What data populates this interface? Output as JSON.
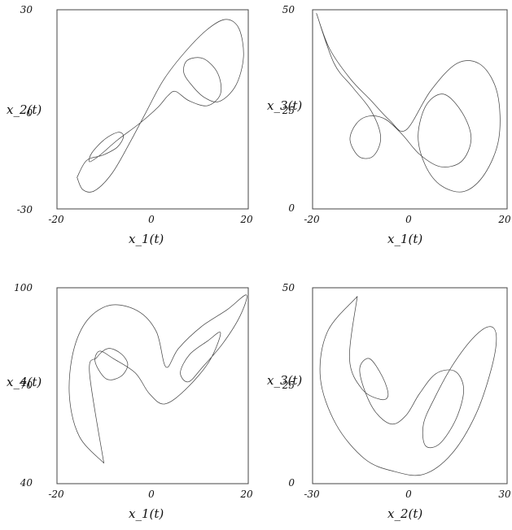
{
  "chart_data": [
    {
      "type": "line",
      "xlabel": "x_1(t)",
      "ylabel": "x_2(t)",
      "xlim": [
        -20,
        20
      ],
      "ylim": [
        -30,
        30
      ],
      "xticks": [
        "-20",
        "0",
        "20"
      ],
      "yticks": [
        "30",
        "0",
        "-30"
      ],
      "x": [
        -15.8,
        -14.6,
        -12.1,
        -8.4,
        -4.6,
        -1.5,
        2.3,
        7.1,
        11.9,
        15.5,
        18.1,
        19.0,
        17.4,
        14.0,
        10.8,
        8.1,
        6.5,
        7.3,
        10.6,
        13.6,
        14.2,
        11.5,
        7.6,
        4.8,
        3.2,
        1.1,
        -2.6,
        -7.4,
        -11.1,
        -13.2,
        -12.7,
        -10.0,
        -7.2,
        -6.1,
        -7.4,
        -10.4,
        -13.8,
        -15.8
      ],
      "y": [
        -20.5,
        -24.2,
        -24.5,
        -19.1,
        -9.6,
        -1.2,
        8.9,
        17.8,
        24.6,
        27.1,
        24.2,
        15.8,
        7.2,
        2.4,
        3.6,
        7.4,
        11.2,
        14.8,
        15.3,
        10.9,
        4.7,
        1.1,
        2.6,
        5.4,
        4.1,
        0.6,
        -4.1,
        -9.3,
        -13.9,
        -15.8,
        -13.1,
        -9.0,
        -6.9,
        -8.2,
        -11.4,
        -13.8,
        -15.4,
        -20.5
      ]
    },
    {
      "type": "line",
      "xlabel": "x_1(t)",
      "ylabel": "x_3(t)",
      "xlim": [
        -20,
        20
      ],
      "ylim": [
        0,
        50
      ],
      "xticks": [
        "-20",
        "0",
        "20"
      ],
      "yticks": [
        "50",
        "25",
        "0"
      ],
      "x": [
        -19.2,
        -16.5,
        -12.2,
        -8.2,
        -4.2,
        -0.8,
        4.3,
        9.8,
        14.7,
        18.0,
        18.3,
        15.4,
        11.2,
        6.5,
        3.2,
        1.7,
        3.4,
        7.0,
        10.8,
        12.6,
        10.6,
        6.3,
        2.0,
        -1.5,
        -5.0,
        -8.4,
        -11.0,
        -12.3,
        -10.4,
        -7.5,
        -6.0,
        -7.9,
        -11.8,
        -15.6,
        -19.2
      ],
      "y": [
        49.1,
        40.2,
        32.6,
        27.5,
        22.3,
        19.8,
        29.7,
        36.6,
        36.1,
        29.0,
        17.7,
        8.8,
        4.4,
        5.8,
        10.9,
        18.4,
        26.1,
        28.8,
        24.1,
        17.6,
        11.9,
        10.6,
        13.7,
        18.6,
        22.5,
        23.3,
        21.4,
        17.3,
        13.1,
        13.3,
        18.0,
        24.5,
        30.6,
        36.6,
        49.1
      ]
    },
    {
      "type": "line",
      "xlabel": "x_1(t)",
      "ylabel": "x_4(t)",
      "xlim": [
        -20,
        20
      ],
      "ylim": [
        40,
        100
      ],
      "xticks": [
        "-20",
        "0",
        "20"
      ],
      "yticks": [
        "100",
        "70",
        "40"
      ],
      "x": [
        -10.2,
        -15.3,
        -17.4,
        -16.6,
        -13.6,
        -8.7,
        -3.0,
        0.8,
        2.8,
        5.4,
        10.2,
        15.6,
        19.6,
        18.3,
        14.7,
        10.5,
        7.5,
        5.8,
        7.7,
        11.5,
        14.2,
        11.9,
        7.0,
        2.5,
        -0.7,
        -3.6,
        -8.2,
        -11.1,
        -12.0,
        -9.7,
        -6.7,
        -5.2,
        -6.6,
        -9.3,
        -11.7,
        -13.2,
        -10.2
      ],
      "y": [
        46.3,
        54.4,
        66.8,
        80.4,
        90.2,
        94.7,
        92.8,
        86.5,
        75.7,
        81.4,
        88.1,
        93.3,
        97.8,
        91.4,
        83.0,
        75.8,
        71.2,
        74.0,
        79.5,
        83.7,
        86.2,
        77.6,
        69.0,
        64.4,
        67.6,
        73.9,
        78.3,
        80.6,
        77.2,
        72.1,
        72.8,
        76.4,
        79.8,
        81.4,
        78.6,
        74.0,
        46.3
      ]
    },
    {
      "type": "line",
      "xlabel": "x_2(t)",
      "ylabel": "x_3(t)",
      "xlim": [
        -30,
        30
      ],
      "ylim": [
        0,
        50
      ],
      "xticks": [
        "-30",
        "0",
        "30"
      ],
      "yticks": [
        "50",
        "25",
        "0"
      ],
      "x": [
        -16.2,
        -25.4,
        -27.6,
        -22.8,
        -13.9,
        -4.7,
        4.3,
        12.9,
        20.3,
        25.1,
        26.7,
        24.8,
        20.0,
        13.4,
        7.6,
        4.2,
        4.8,
        9.2,
        14.3,
        16.6,
        13.9,
        8.1,
        3.0,
        -1.1,
        -5.6,
        -10.6,
        -14.2,
        -15.4,
        -12.4,
        -8.4,
        -6.7,
        -9.0,
        -14.7,
        -18.6,
        -16.2
      ],
      "y": [
        47.8,
        38.8,
        27.0,
        15.2,
        6.3,
        3.1,
        2.4,
        7.6,
        17.6,
        29.2,
        37.3,
        40.1,
        37.6,
        30.5,
        21.8,
        15.2,
        9.7,
        10.2,
        16.6,
        24.1,
        28.7,
        28.1,
        23.0,
        17.5,
        15.2,
        18.3,
        24.4,
        29.7,
        31.9,
        27.2,
        22.6,
        21.5,
        24.1,
        31.8,
        47.8
      ]
    }
  ]
}
